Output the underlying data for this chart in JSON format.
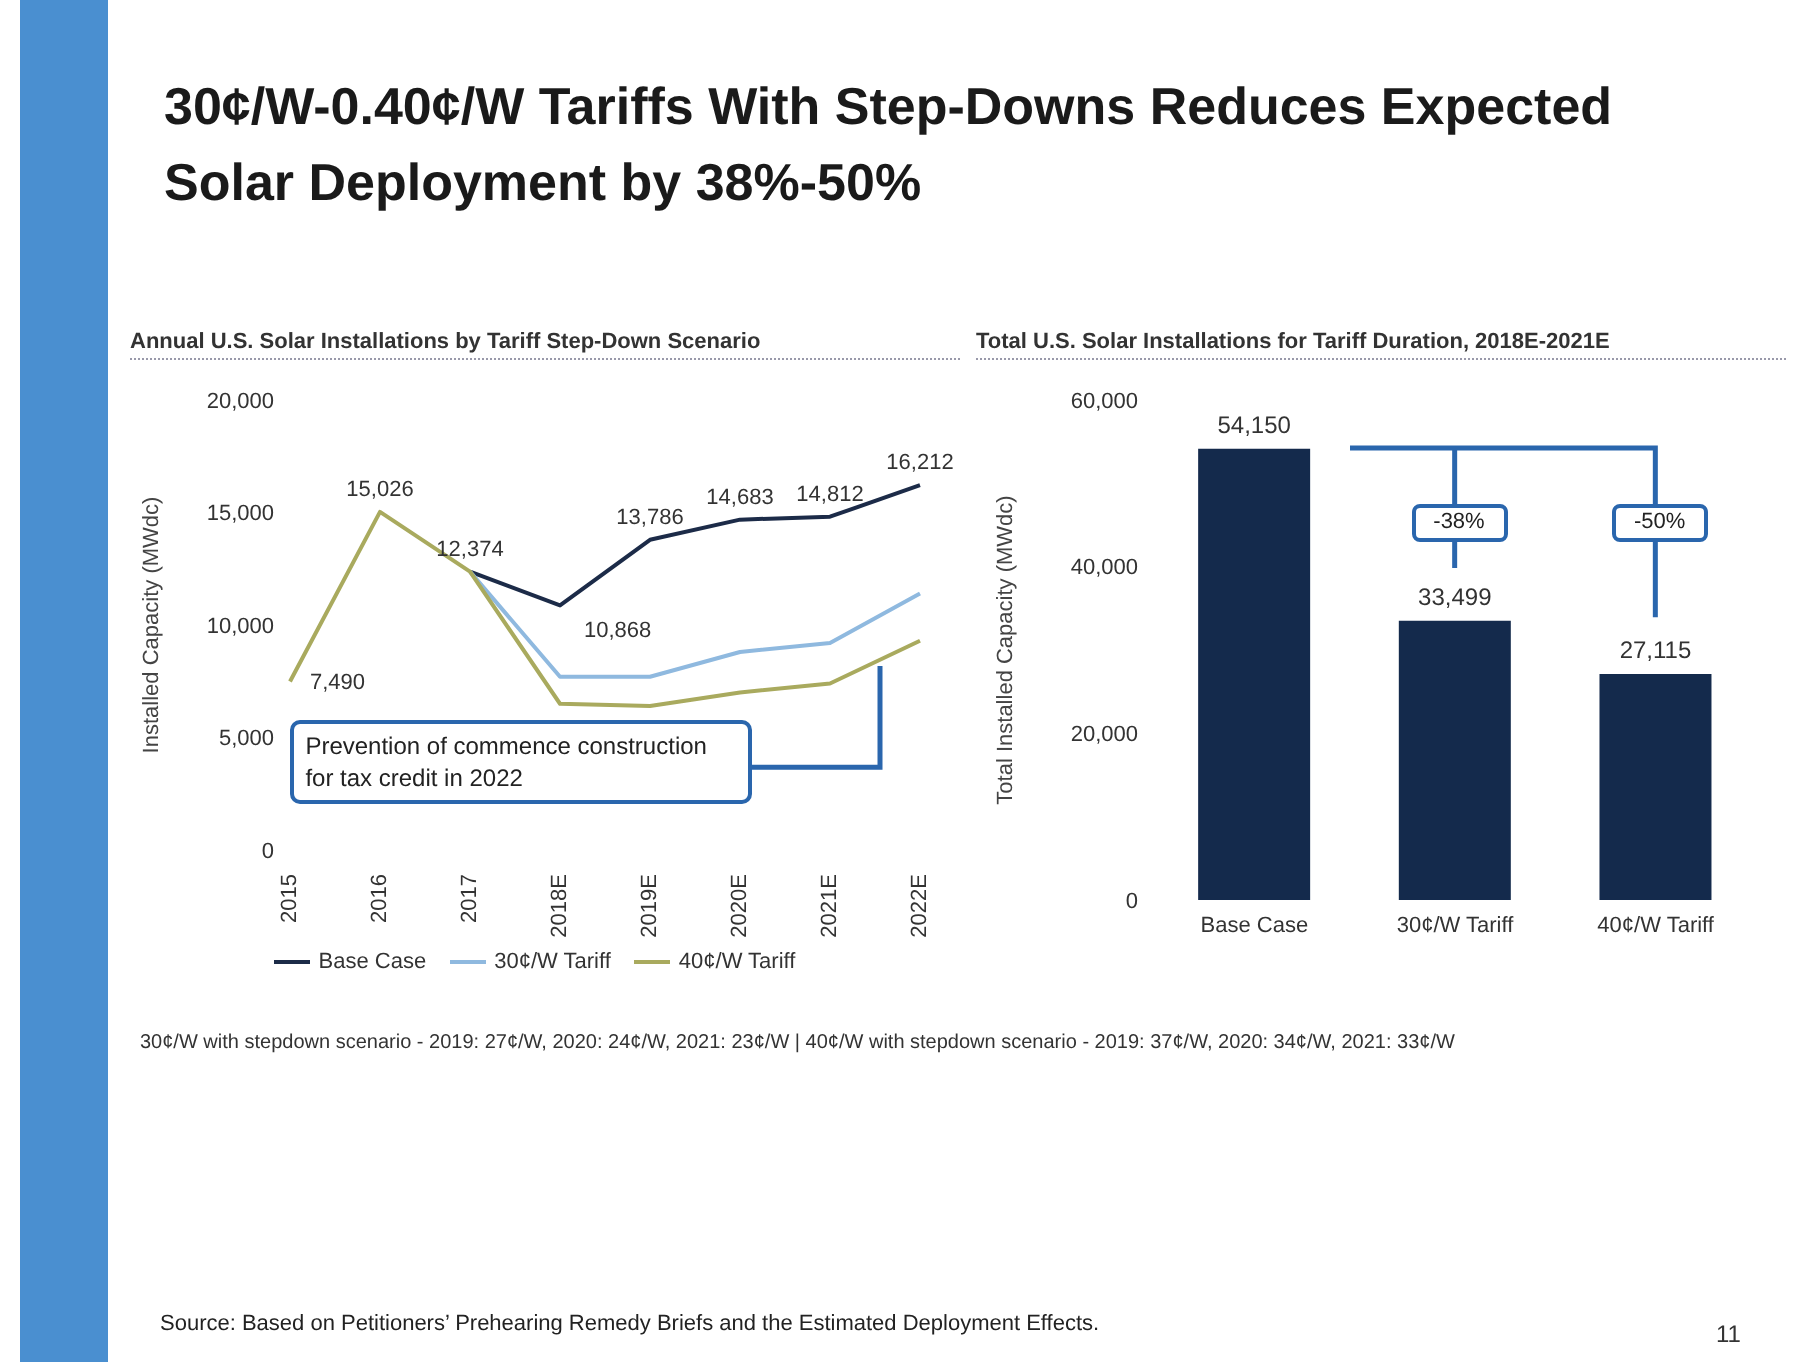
{
  "chart_data": [
    {
      "type": "line",
      "title": "Annual U.S. Solar Installations by Tariff Step-Down Scenario",
      "ylabel": "Installed Capacity (MWdc)",
      "categories": [
        "2015",
        "2016",
        "2017",
        "2018E",
        "2019E",
        "2020E",
        "2021E",
        "2022E"
      ],
      "series": [
        {
          "name": "Base Case",
          "color": "#1c2b48",
          "values": [
            null,
            null,
            12374,
            10868,
            13786,
            14683,
            14812,
            16212
          ],
          "value_labels": [
            null,
            null,
            "12,374",
            "10,868",
            "13,786",
            "14,683",
            "14,812",
            "16,212"
          ]
        },
        {
          "name": "30¢/W Tariff",
          "color": "#8fb9df",
          "values": [
            null,
            null,
            12374,
            7700,
            7700,
            8800,
            9200,
            11400
          ]
        },
        {
          "name": "40¢/W Tariff",
          "color": "#a9aa5e",
          "values": [
            7490,
            15026,
            12374,
            6500,
            6400,
            7000,
            7400,
            9300
          ],
          "value_labels": [
            "7,490",
            "15,026",
            null,
            null,
            null,
            null,
            null,
            null
          ]
        }
      ],
      "ylim": [
        0,
        20000
      ],
      "yticks": [
        0,
        {
          "value": 5000,
          "label": "5,000"
        },
        {
          "value": 10000,
          "label": "10,000"
        },
        {
          "value": 15000,
          "label": "15,000"
        },
        {
          "value": 20000,
          "label": "20,000"
        }
      ],
      "legend": "bottom",
      "marker": "none",
      "annotations": [
        "30¢/W-0.40¢/W Tariffs With Step-Downs Reduces Expected Solar Deployment by 38%-50%",
        "Prevention of commence construction for tax credit in 2022"
      ]
    },
    {
      "type": "bar",
      "title": "Total U.S. Solar Installations for Tariff Duration, 2018E-2021E",
      "ylabel": "Total Installed Capacity (MWdc)",
      "categories": [
        "Base Case",
        "30¢/W Tariff",
        "40¢/W Tariff"
      ],
      "values": [
        54150,
        33499,
        27115
      ],
      "value_labels": [
        "54,150",
        "33,499",
        "27,115"
      ],
      "color": "#142a4c",
      "ylim": [
        0,
        60000
      ],
      "yticks": [
        0,
        {
          "value": 20000,
          "label": "20,000"
        },
        {
          "value": 40000,
          "label": "40,000"
        },
        {
          "value": 60000,
          "label": "60,000"
        }
      ],
      "annotations": [
        "-38%",
        "-50%",
        "30¢/W with stepdown scenario - 2019: 27¢/W, 2020: 24¢/W, 2021: 23¢/W | 40¢/W with stepdown scenario - 2019: 37¢/W, 2020: 34¢/W, 2021: 33¢/W",
        "Source: Based on Petitioners’ Prehearing Remedy Briefs and the Estimated Deployment Effects.",
        "11"
      ]
    }
  ]
}
